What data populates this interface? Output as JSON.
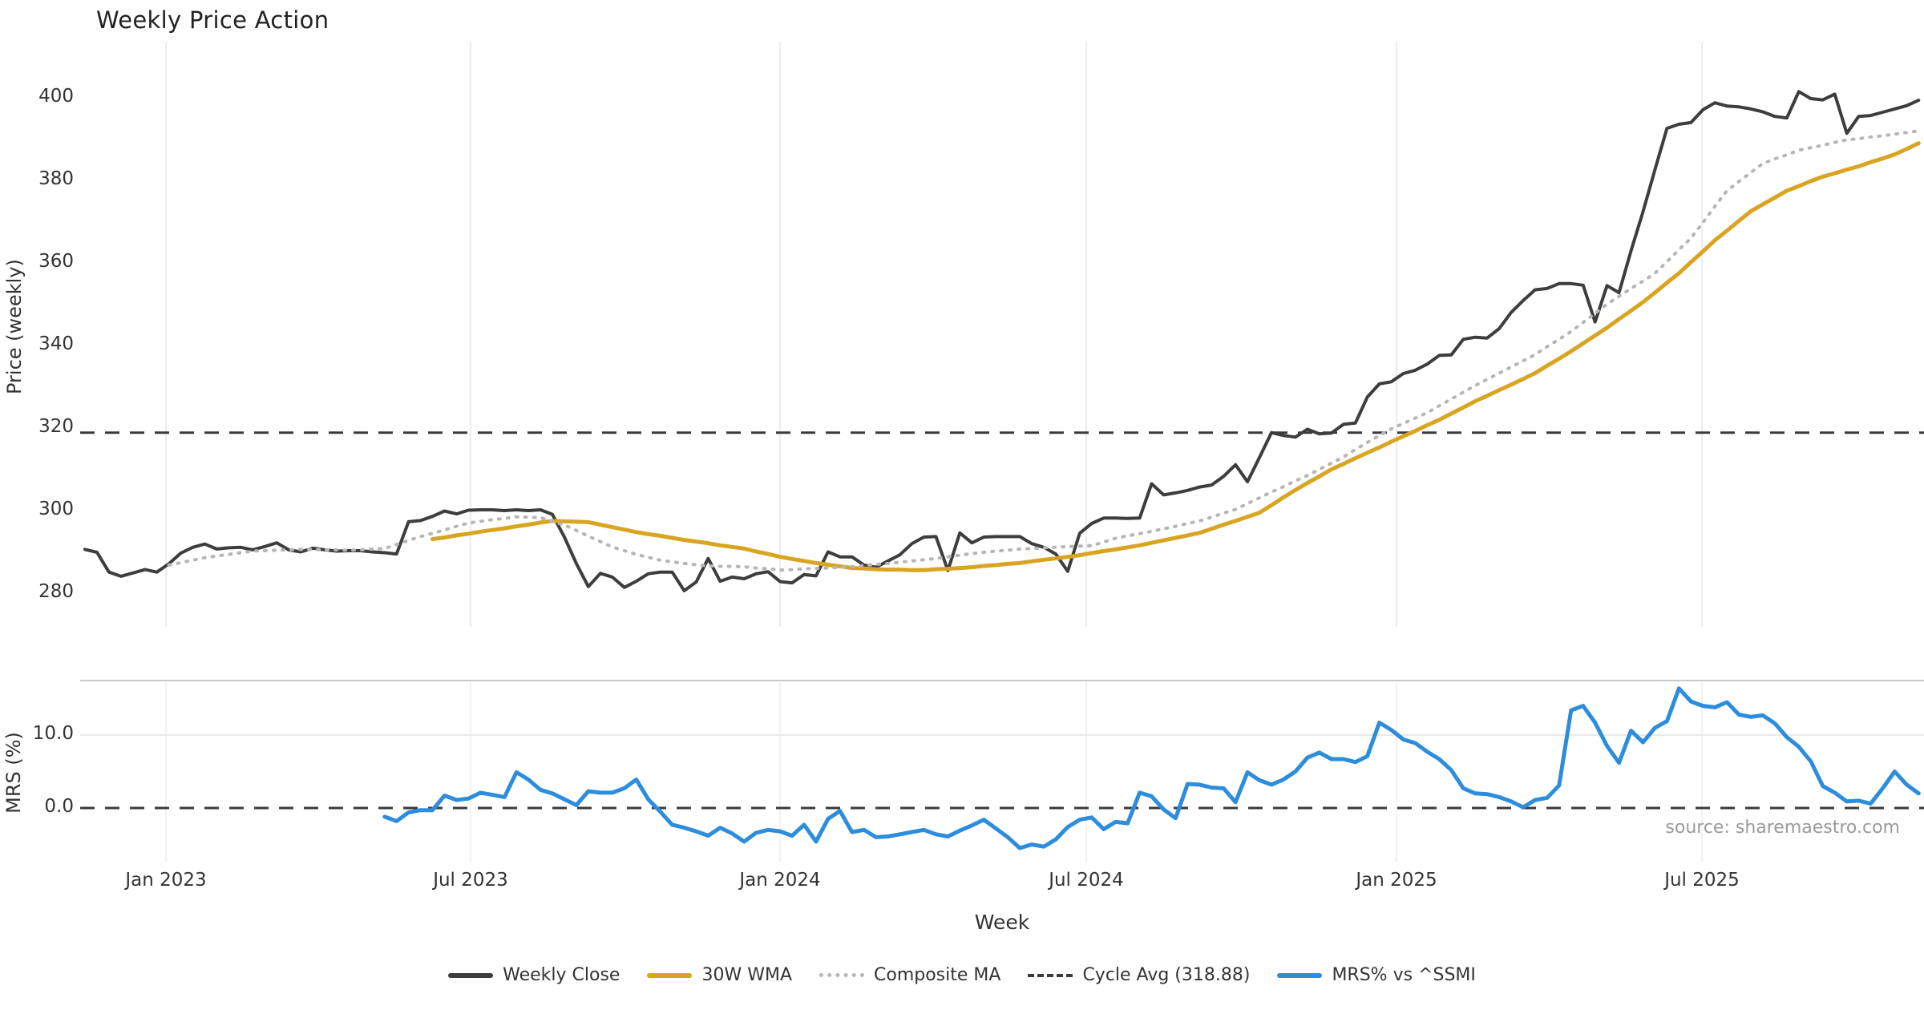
{
  "chart_data": {
    "type": "line",
    "title": "Weekly Price Action",
    "xlabel": "Week",
    "ylabel_price": "Price (weekly)",
    "ylabel_mrs": "MRS (%)",
    "source": "source: sharemaestro.com",
    "legend": [
      {
        "label": "Weekly Close",
        "style": "solid",
        "color": "#3d3d3d"
      },
      {
        "label": "30W WMA",
        "style": "solid",
        "color": "#d9a521"
      },
      {
        "label": "Composite MA",
        "style": "dotted",
        "color": "#b6b6b6"
      },
      {
        "label": "Cycle Avg (318.88)",
        "style": "dashed",
        "color": "#3a3a3a"
      },
      {
        "label": "MRS% vs ^SSMI",
        "style": "solid",
        "color": "#2d8ddd"
      }
    ],
    "cycle_avg": 318.88,
    "mrs_zero_line": 0.0,
    "x_ticks": [
      {
        "label": "Jan 2023",
        "week": 6.76
      },
      {
        "label": "Jul 2023",
        "week": 32.17
      },
      {
        "label": "Jan 2024",
        "week": 58.0
      },
      {
        "label": "Jul 2024",
        "week": 83.55
      },
      {
        "label": "Jan 2025",
        "week": 109.43
      },
      {
        "label": "Jul 2025",
        "week": 134.92
      }
    ],
    "price_ticks": [
      280,
      300,
      320,
      340,
      360,
      380,
      400
    ],
    "mrs_ticks": [
      {
        "label": "0.0",
        "value": 0.0
      },
      {
        "label": "10.0",
        "value": 10.0
      }
    ],
    "price_ylim": [
      271.5,
      412.0
    ],
    "mrs_ylim": [
      -7.3,
      17.5
    ],
    "weeks_total": 154,
    "series": [
      {
        "name": "Weekly Close",
        "color": "#3d3d3d",
        "width": 4,
        "dash": null,
        "panel": "price",
        "values": [
          290.6,
          289.9,
          285.1,
          284.1,
          284.9,
          285.7,
          285.1,
          287.1,
          289.7,
          291.1,
          291.9,
          290.7,
          291.0,
          291.1,
          290.5,
          291.3,
          292.2,
          290.5,
          290.0,
          290.9,
          290.5,
          290.2,
          290.3,
          290.3,
          290.0,
          289.8,
          289.5,
          297.3,
          297.6,
          298.6,
          299.9,
          299.2,
          300.1,
          300.2,
          300.2,
          300.0,
          300.2,
          300.0,
          300.2,
          299.1,
          293.6,
          287.2,
          281.6,
          284.8,
          283.9,
          281.4,
          282.9,
          284.7,
          285.1,
          285.1,
          280.6,
          282.7,
          288.4,
          282.9,
          283.9,
          283.5,
          284.7,
          285.2,
          282.8,
          282.5,
          284.5,
          284.2,
          290.0,
          288.8,
          288.8,
          286.8,
          286.3,
          287.8,
          289.3,
          292.0,
          293.6,
          293.7,
          285.5,
          294.6,
          292.2,
          293.6,
          293.7,
          293.7,
          293.7,
          292.0,
          291.1,
          289.5,
          285.3,
          294.5,
          296.9,
          298.2,
          298.2,
          298.1,
          298.2,
          306.5,
          303.8,
          304.3,
          304.9,
          305.7,
          306.2,
          308.3,
          311.1,
          307.0,
          312.9,
          318.9,
          318.2,
          317.8,
          319.7,
          318.6,
          318.8,
          320.9,
          321.2,
          327.5,
          330.7,
          331.2,
          333.2,
          334.0,
          335.5,
          337.6,
          337.7,
          341.5,
          342.0,
          341.8,
          344.1,
          348.0,
          350.9,
          353.5,
          353.8,
          355.0,
          355.0,
          354.6,
          345.7,
          354.5,
          352.8,
          362.9,
          372.4,
          382.6,
          392.6,
          393.6,
          394.0,
          397.1,
          398.8,
          398.0,
          397.8,
          397.3,
          396.6,
          395.5,
          395.1,
          401.5,
          399.8,
          399.5,
          400.9,
          391.4,
          395.5,
          395.7,
          396.5,
          397.3,
          398.1,
          399.4
        ]
      },
      {
        "name": "30W WMA",
        "color": "#d9a521",
        "width": 5,
        "dash": null,
        "panel": "price",
        "values": [
          null,
          null,
          null,
          null,
          null,
          null,
          null,
          null,
          null,
          null,
          null,
          null,
          null,
          null,
          null,
          null,
          null,
          null,
          null,
          null,
          null,
          null,
          null,
          null,
          null,
          null,
          null,
          null,
          null,
          293.1,
          293.5,
          294.0,
          294.4,
          294.9,
          295.3,
          295.7,
          296.2,
          296.6,
          297.1,
          297.5,
          297.4,
          297.3,
          297.2,
          296.6,
          296.0,
          295.4,
          294.8,
          294.3,
          293.9,
          293.4,
          292.9,
          292.5,
          292.1,
          291.6,
          291.2,
          290.8,
          290.1,
          289.5,
          288.8,
          288.3,
          287.8,
          287.3,
          286.9,
          286.5,
          286.1,
          286.0,
          285.8,
          285.7,
          285.7,
          285.6,
          285.6,
          285.8,
          285.9,
          286.1,
          286.3,
          286.6,
          286.8,
          287.1,
          287.3,
          287.7,
          288.1,
          288.4,
          288.8,
          289.2,
          289.7,
          290.2,
          290.6,
          291.1,
          291.6,
          292.2,
          292.8,
          293.4,
          294.0,
          294.6,
          295.6,
          296.6,
          297.5,
          298.5,
          299.5,
          301.3,
          303.2,
          305.0,
          306.7,
          308.3,
          310.0,
          311.3,
          312.7,
          314.0,
          315.3,
          316.7,
          318.0,
          319.3,
          320.7,
          322.0,
          323.5,
          325.0,
          326.5,
          327.8,
          329.2,
          330.5,
          331.9,
          333.3,
          335.1,
          336.8,
          338.6,
          340.5,
          342.4,
          344.3,
          346.4,
          348.4,
          350.5,
          352.8,
          355.2,
          357.5,
          360.2,
          362.8,
          365.5,
          367.8,
          370.2,
          372.5,
          374.2,
          375.8,
          377.5,
          378.6,
          379.8,
          380.9,
          381.7,
          382.6,
          383.4,
          384.4,
          385.3,
          386.3,
          387.6,
          389.0
        ]
      },
      {
        "name": "Composite MA",
        "color": "#b6b6b6",
        "width": 4,
        "dash": "2 9",
        "panel": "price",
        "values": [
          null,
          null,
          null,
          null,
          null,
          null,
          null,
          286.8,
          287.4,
          288.0,
          288.6,
          289.0,
          289.4,
          289.8,
          290.2,
          290.3,
          290.4,
          290.5,
          290.6,
          290.6,
          290.5,
          290.5,
          290.4,
          290.5,
          290.7,
          290.8,
          291.8,
          292.8,
          293.7,
          294.5,
          295.3,
          296.2,
          297.0,
          297.4,
          297.8,
          298.1,
          298.5,
          298.4,
          298.3,
          297.4,
          296.5,
          295.2,
          293.8,
          292.5,
          291.2,
          290.3,
          289.4,
          288.7,
          288.0,
          287.6,
          287.2,
          286.9,
          286.6,
          286.5,
          286.5,
          286.4,
          286.1,
          285.9,
          285.6,
          285.7,
          285.9,
          286.0,
          286.1,
          286.3,
          286.4,
          286.7,
          287.0,
          287.2,
          287.5,
          287.8,
          288.1,
          288.4,
          288.8,
          289.2,
          289.6,
          289.9,
          290.2,
          290.4,
          290.7,
          290.8,
          291.0,
          291.1,
          291.3,
          291.4,
          291.5,
          292.4,
          293.3,
          293.9,
          294.4,
          295.0,
          295.6,
          296.2,
          296.9,
          297.5,
          298.4,
          299.4,
          300.3,
          301.7,
          303.1,
          304.5,
          305.8,
          307.2,
          308.5,
          310.0,
          311.5,
          313.0,
          314.8,
          316.5,
          318.2,
          319.8,
          321.1,
          322.4,
          323.7,
          325.4,
          327.0,
          328.7,
          330.3,
          331.8,
          333.3,
          334.8,
          336.3,
          337.8,
          339.7,
          341.5,
          343.4,
          345.6,
          347.8,
          350.0,
          351.9,
          353.8,
          355.6,
          357.5,
          360.3,
          363.2,
          366.0,
          369.8,
          373.7,
          377.5,
          379.7,
          381.9,
          384.1,
          385.2,
          386.2,
          387.3,
          387.9,
          388.5,
          389.2,
          389.8,
          390.1,
          390.5,
          390.8,
          391.2,
          391.6,
          392.0
        ]
      },
      {
        "name": "MRS% vs ^SSMI",
        "color": "#2d8ddd",
        "width": 5,
        "dash": null,
        "panel": "mrs",
        "values": [
          null,
          null,
          null,
          null,
          null,
          null,
          null,
          null,
          null,
          null,
          null,
          null,
          null,
          null,
          null,
          null,
          null,
          null,
          null,
          null,
          null,
          null,
          null,
          null,
          null,
          -1.2,
          -1.8,
          -0.6,
          -0.3,
          -0.3,
          1.7,
          1.1,
          1.3,
          2.1,
          1.8,
          1.5,
          4.9,
          3.9,
          2.5,
          2.0,
          1.2,
          0.4,
          2.3,
          2.1,
          2.1,
          2.7,
          3.9,
          1.2,
          -0.5,
          -2.3,
          -2.7,
          -3.2,
          -3.8,
          -2.7,
          -3.5,
          -4.6,
          -3.4,
          -3.0,
          -3.2,
          -3.8,
          -2.3,
          -4.6,
          -1.5,
          -0.4,
          -3.3,
          -3.0,
          -4.0,
          -3.9,
          -3.6,
          -3.3,
          -3.0,
          -3.6,
          -3.9,
          -3.1,
          -2.4,
          -1.6,
          -2.8,
          -4.0,
          -5.5,
          -5.0,
          -5.3,
          -4.3,
          -2.6,
          -1.6,
          -1.3,
          -2.9,
          -1.9,
          -2.1,
          2.1,
          1.6,
          -0.2,
          -1.4,
          3.3,
          3.2,
          2.8,
          2.7,
          0.8,
          4.9,
          3.8,
          3.2,
          3.9,
          5.0,
          6.9,
          7.6,
          6.7,
          6.7,
          6.3,
          7.1,
          11.7,
          10.7,
          9.4,
          8.9,
          7.7,
          6.7,
          5.2,
          2.7,
          2.0,
          1.9,
          1.5,
          0.9,
          0.1,
          1.1,
          1.4,
          3.1,
          13.4,
          14.0,
          11.7,
          8.5,
          6.2,
          10.6,
          9.0,
          11.0,
          11.9,
          16.4,
          14.6,
          14.0,
          13.8,
          14.5,
          12.8,
          12.5,
          12.7,
          11.6,
          9.7,
          8.4,
          6.4,
          3.0,
          2.1,
          0.9,
          1.0,
          0.6,
          2.7,
          5.0,
          3.2,
          2.0
        ]
      }
    ]
  }
}
